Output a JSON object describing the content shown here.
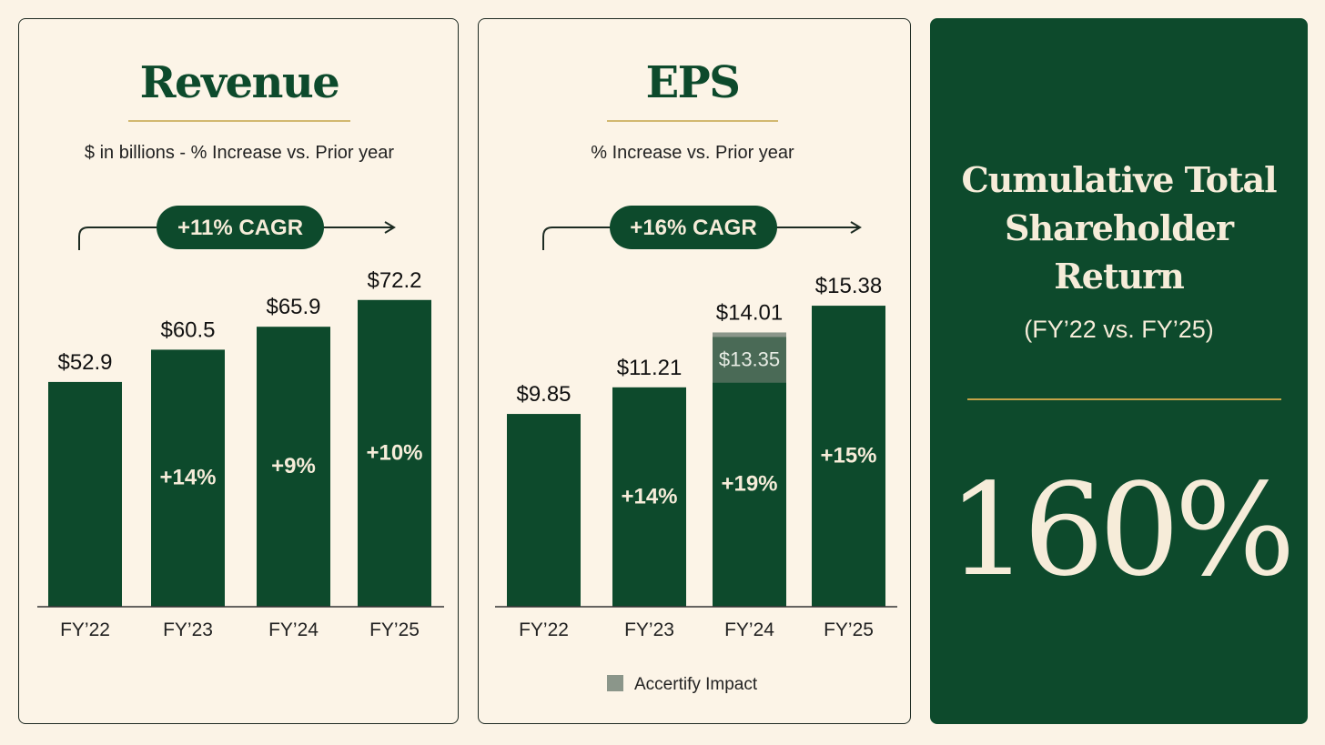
{
  "colors": {
    "bar": "#0d4a2c",
    "bar_highlight": "#4a6a56",
    "legend_swatch": "#8b968a",
    "accent_line": "#c3a348",
    "background": "#fcf4e7",
    "text_light": "#f6ecd9"
  },
  "chart_data": [
    {
      "type": "bar",
      "title": "Revenue",
      "subtitle": "$ in billions - % Increase vs. Prior year",
      "annotation": "+11% CAGR",
      "categories": [
        "FY’22",
        "FY’23",
        "FY’24",
        "FY’25"
      ],
      "values": [
        52.9,
        60.5,
        65.9,
        72.2
      ],
      "value_labels": [
        "$52.9",
        "$60.5",
        "$65.9",
        "$72.2"
      ],
      "growth_labels": [
        "",
        "+14%",
        "+9%",
        "+10%"
      ],
      "ylim": [
        0,
        82
      ]
    },
    {
      "type": "bar",
      "title": "EPS",
      "subtitle": "% Increase vs. Prior year",
      "annotation": "+16% CAGR",
      "categories": [
        "FY’22",
        "FY’23",
        "FY’24",
        "FY’25"
      ],
      "values": [
        9.85,
        11.21,
        14.01,
        15.38
      ],
      "value_labels": [
        "$9.85",
        "$11.21",
        "$14.01",
        "$15.38"
      ],
      "growth_labels": [
        "",
        "+14%",
        "+19%",
        "+15%"
      ],
      "segments": [
        {
          "category": "FY’24",
          "base": 13.35,
          "base_label": "$13.35",
          "series": "Accertify Impact"
        }
      ],
      "legend": [
        "Accertify Impact"
      ],
      "legend_position": "bottom-center",
      "ylim": [
        0,
        17.8
      ]
    }
  ],
  "tsr": {
    "title_lines": [
      "Cumulative Total",
      "Shareholder",
      "Return"
    ],
    "period": "(FY’22 vs. FY’25)",
    "value": "160%"
  }
}
